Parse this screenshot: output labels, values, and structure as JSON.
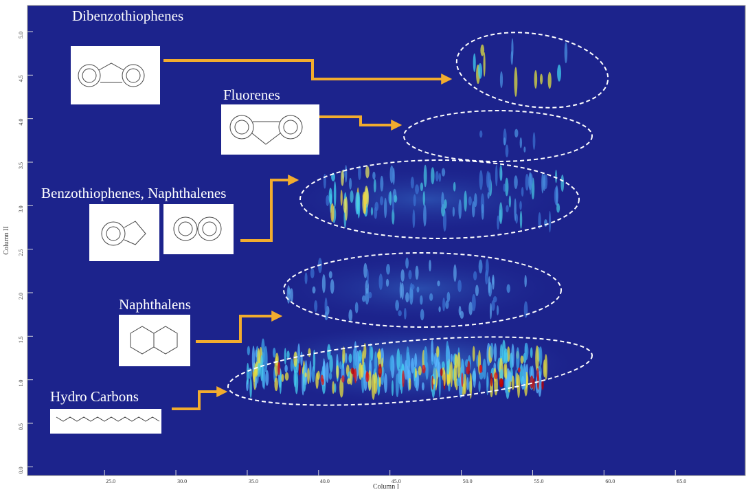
{
  "chart_data": {
    "type": "heatmap",
    "x_label": "Column I",
    "y_label": "Column II",
    "xlim": [
      19.6,
      69.9
    ],
    "xticks": [
      {
        "value": 25,
        "label": "25.0"
      },
      {
        "value": 30,
        "label": "30.0"
      },
      {
        "value": 35,
        "label": "35.0"
      },
      {
        "value": 40,
        "label": "40.0"
      },
      {
        "value": 45,
        "label": "45.0"
      },
      {
        "value": 50,
        "label": "50.0"
      },
      {
        "value": 55,
        "label": "55.0"
      },
      {
        "value": 60,
        "label": "60.0"
      },
      {
        "value": 65,
        "label": "65.0"
      }
    ],
    "ylim": [
      -0.1,
      5.3
    ],
    "yticks": [
      {
        "value": 0,
        "label": "0.0"
      },
      {
        "value": 0.5,
        "label": "0.5"
      },
      {
        "value": 1,
        "label": "1.0"
      },
      {
        "value": 1.5,
        "label": "1.5"
      },
      {
        "value": 2,
        "label": "2.0"
      },
      {
        "value": 2.5,
        "label": "2.5"
      },
      {
        "value": 3,
        "label": "3.0"
      },
      {
        "value": 3.5,
        "label": "3.5"
      },
      {
        "value": 4,
        "label": "4.0"
      },
      {
        "value": 4.5,
        "label": "4.5"
      },
      {
        "value": 5,
        "label": "5.0"
      }
    ],
    "annotations": [
      "Dibenzothiophenes",
      "Fluorenes",
      "Benzothiophenes, Naphthalenes",
      "Naphthalens",
      "Hydro Carbons"
    ]
  }
}
